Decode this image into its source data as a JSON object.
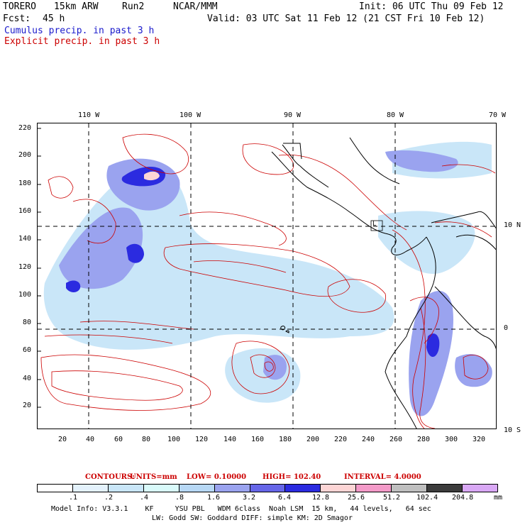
{
  "header": {
    "model": "TORERO",
    "resolution": "15km ARW",
    "run": "Run2",
    "center": "NCAR/MMM",
    "init": "Init: 06 UTC Thu 09 Feb 12",
    "fcst_label": "Fcst:",
    "fcst_value": "45 h",
    "valid": "Valid: 03 UTC Sat 11 Feb 12 (21 CST Fri 10 Feb 12)"
  },
  "legend": {
    "cumulus": "Cumulus precip. in past 3 h",
    "explicit": "Explicit precip. in past 3 h"
  },
  "map": {
    "top_labels": [
      "110 W",
      "100 W",
      "90 W",
      "80 W",
      "70 W"
    ],
    "right_labels": [
      "10 N",
      "0",
      "10 S"
    ],
    "y_ticks": [
      "220",
      "200",
      "180",
      "160",
      "140",
      "120",
      "100",
      "80",
      "60",
      "40",
      "20"
    ],
    "x_ticks": [
      "20",
      "40",
      "60",
      "80",
      "100",
      "120",
      "140",
      "160",
      "180",
      "200",
      "220",
      "240",
      "260",
      "280",
      "300",
      "320"
    ],
    "storm_marker": "L"
  },
  "contours": {
    "label": "CONTOURS:",
    "units": "UNITS=mm",
    "low": "LOW= 0.10000",
    "high": "HIGH= 102.40",
    "interval": "INTERVAL= 4.0000"
  },
  "colorbar": {
    "colors": [
      "#ffffff",
      "#e4f2fc",
      "#c9e6f8",
      "#d9fafa",
      "#b7d8f5",
      "#9aa3ef",
      "#6666e8",
      "#2b2be0",
      "#fdd5d5",
      "#f39ac8",
      "#bfbfbf",
      "#3c3c3c",
      "#d9a8f5"
    ],
    "labels": [
      ".1",
      ".2",
      ".4",
      ".8",
      "1.6",
      "3.2",
      "6.4",
      "12.8",
      "25.6",
      "51.2",
      "102.4",
      "204.8"
    ],
    "unit": "mm"
  },
  "footer": {
    "line1": "Model Info: V3.3.1    KF     YSU PBL   WDM 6class  Noah LSM  15 km,   44 levels,   64 sec",
    "line2": "LW: Godd SW: Goddard DIFF: simple KM: 2D Smagor"
  }
}
